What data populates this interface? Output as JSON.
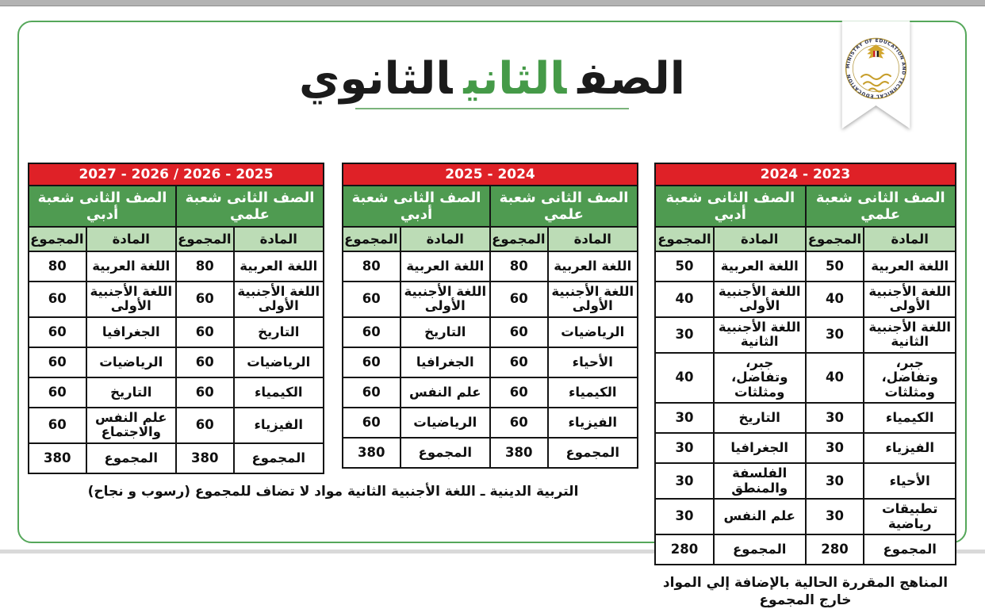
{
  "page": {
    "title": {
      "pre": "الصف",
      "highlight": "الثاني",
      "post": "الثانوي"
    },
    "colors": {
      "accent_green": "#459a48",
      "header_red": "#df2127",
      "band_green": "#4f9b51",
      "light_green": "#bcdcb6",
      "card_border_green": "#55a75a"
    }
  },
  "logo": {
    "ring_text": "MINISTRY OF EDUCATION AND TECHNICAL EDUCATION"
  },
  "labels": {
    "subject_col": "المادة",
    "total_col": "المجموع",
    "scientific_header": "الصف الثانى شعبة علمي",
    "literary_header": "الصف الثانى شعبة أدبي"
  },
  "tables": [
    {
      "year": "2024 - 2023",
      "rows": [
        {
          "ilmi_subject": "اللغة العربية",
          "ilmi_total": "50",
          "adabi_subject": "اللغة العربية",
          "adabi_total": "50"
        },
        {
          "ilmi_subject": "اللغة الأجنبية الأولى",
          "ilmi_total": "40",
          "adabi_subject": "اللغة الأجنبية الأولى",
          "adabi_total": "40"
        },
        {
          "ilmi_subject": "اللغة الأجنبية الثانية",
          "ilmi_total": "30",
          "ilmi_green": true,
          "adabi_subject": "اللغة الأجنبية الثانية",
          "adabi_total": "30",
          "adabi_green": true
        },
        {
          "ilmi_subject": "جبر، وتفاضل، ومثلثات",
          "ilmi_total": "40",
          "adabi_subject": "جبر، وتفاضل، ومثلثات",
          "adabi_total": "40"
        },
        {
          "ilmi_subject": "الكيمياء",
          "ilmi_total": "30",
          "adabi_subject": "التاريخ",
          "adabi_total": "30"
        },
        {
          "ilmi_subject": "الفيزياء",
          "ilmi_total": "30",
          "adabi_subject": "الجغرافيا",
          "adabi_total": "30"
        },
        {
          "ilmi_subject": "الأحياء",
          "ilmi_total": "30",
          "adabi_subject": "الفلسفة والمنطق",
          "adabi_total": "30"
        },
        {
          "ilmi_subject": "تطبيقات رياضية",
          "ilmi_total": "30",
          "adabi_subject": "علم النفس",
          "adabi_total": "30"
        },
        {
          "ilmi_subject": "المجموع",
          "ilmi_total": "280",
          "adabi_subject": "المجموع",
          "adabi_total": "280"
        }
      ]
    },
    {
      "year": "2025 - 2024",
      "rows": [
        {
          "ilmi_subject": "اللغة العربية",
          "ilmi_total": "80",
          "adabi_subject": "اللغة العربية",
          "adabi_total": "80"
        },
        {
          "ilmi_subject": "اللغة الأجنبية الأولى",
          "ilmi_total": "60",
          "adabi_subject": "اللغة الأجنبية الأولى",
          "adabi_total": "60"
        },
        {
          "ilmi_subject": "الرياضيات",
          "ilmi_total": "60",
          "adabi_subject": "التاريخ",
          "adabi_total": "60"
        },
        {
          "ilmi_subject": "الأحياء",
          "ilmi_total": "60",
          "adabi_subject": "الجغرافيا",
          "adabi_total": "60"
        },
        {
          "ilmi_subject": "الكيمياء",
          "ilmi_total": "60",
          "adabi_subject": "علم النفس",
          "adabi_total": "60"
        },
        {
          "ilmi_subject": "الفيزياء",
          "ilmi_total": "60",
          "adabi_subject": "الرياضيات",
          "adabi_total": "60"
        },
        {
          "ilmi_subject": "المجموع",
          "ilmi_total": "380",
          "adabi_subject": "المجموع",
          "adabi_total": "380"
        }
      ]
    },
    {
      "year": "2027 - 2026 / 2026 - 2025",
      "rows": [
        {
          "ilmi_subject": "اللغة العربية",
          "ilmi_total": "80",
          "adabi_subject": "اللغة العربية",
          "adabi_total": "80"
        },
        {
          "ilmi_subject": "اللغة الأجنبية الأولى",
          "ilmi_total": "60",
          "adabi_subject": "اللغة الأجنبية الأولى",
          "adabi_total": "60"
        },
        {
          "ilmi_subject": "التاريخ",
          "ilmi_total": "60",
          "ilmi_green": true,
          "adabi_subject": "الجغرافيا",
          "adabi_total": "60"
        },
        {
          "ilmi_subject": "الرياضيات",
          "ilmi_total": "60",
          "adabi_subject": "الرياضيات",
          "adabi_total": "60"
        },
        {
          "ilmi_subject": "الكيمياء",
          "ilmi_total": "60",
          "adabi_subject": "التاريخ",
          "adabi_total": "60"
        },
        {
          "ilmi_subject": "الفيزياء",
          "ilmi_total": "60",
          "adabi_subject": "علم النفس والاجتماع",
          "adabi_total": "60"
        },
        {
          "ilmi_subject": "المجموع",
          "ilmi_total": "380",
          "adabi_subject": "المجموع",
          "adabi_total": "380"
        }
      ]
    }
  ],
  "footnotes": {
    "current_year": "المناهج المقررة الحالية بالإضافة إلي المواد خارج المجموع",
    "new_years": "التربية الدينية ـ اللغة الأجنبية الثانية مواد لا تضاف للمجموع (رسوب و نجاح)"
  }
}
